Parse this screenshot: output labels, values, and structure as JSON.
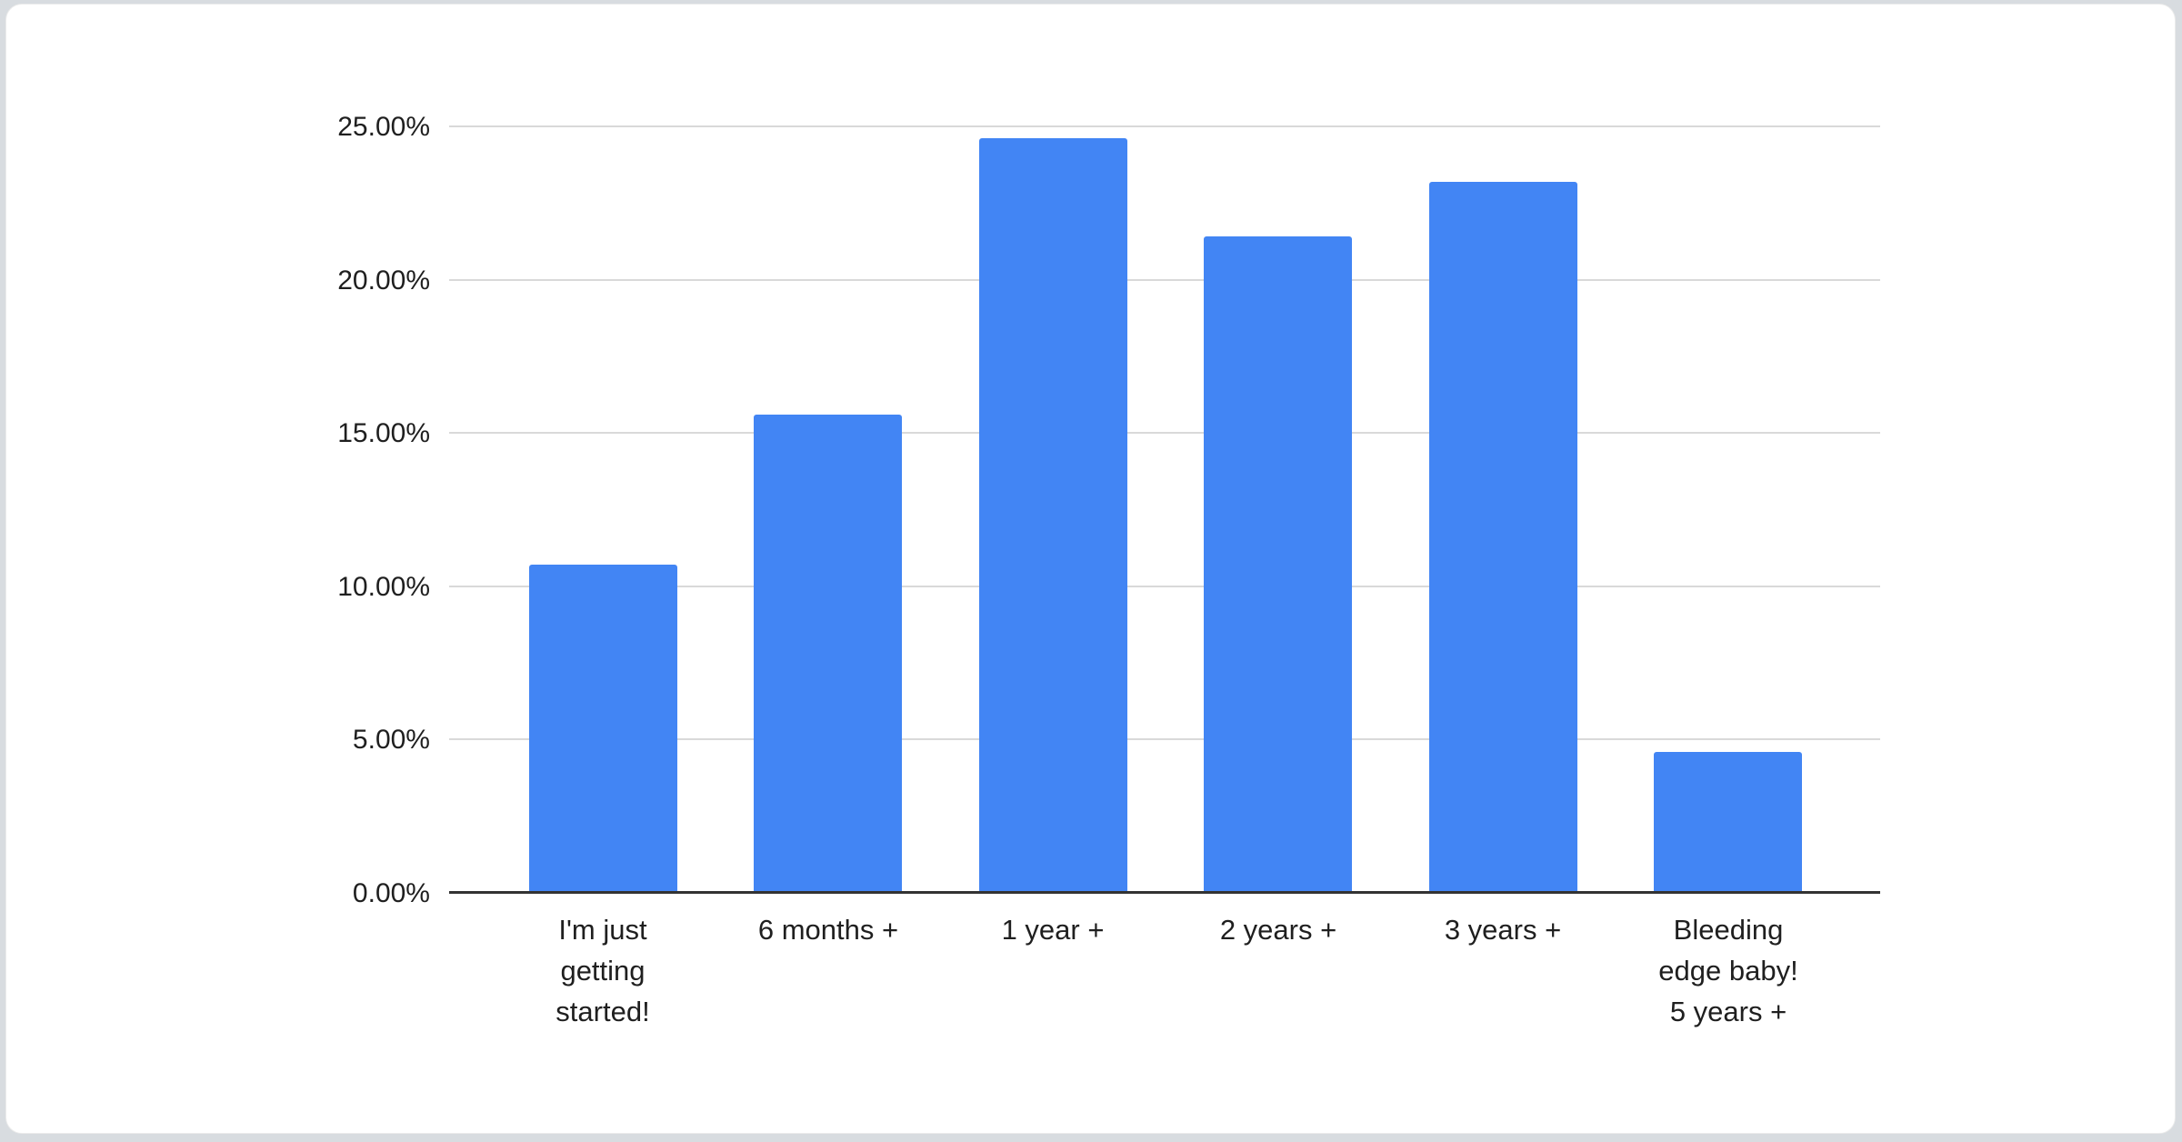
{
  "chart_data": {
    "type": "bar",
    "title": "",
    "xlabel": "",
    "ylabel": "",
    "categories": [
      "I'm just\ngetting\nstarted!",
      "6 months +",
      "1 year +",
      "2 years +",
      "3 years +",
      "Bleeding\nedge baby!\n5 years +"
    ],
    "values": [
      10.7,
      15.6,
      24.6,
      21.4,
      23.2,
      4.6
    ],
    "value_unit": "%",
    "y_ticks": [
      "0.00%",
      "5.00%",
      "10.00%",
      "15.00%",
      "20.00%",
      "25.00%"
    ],
    "y_tick_values": [
      0,
      5,
      10,
      15,
      20,
      25
    ],
    "ylim": [
      0,
      25
    ],
    "grid": true,
    "legend_position": "none",
    "bar_color": "#4285f4"
  },
  "colors": {
    "page_background": "#d8dce0",
    "card_background": "#ffffff",
    "gridline": "#d9d9d9",
    "baseline": "#333333",
    "axis_text": "#1f1f1f",
    "bar": "#4285f4"
  }
}
